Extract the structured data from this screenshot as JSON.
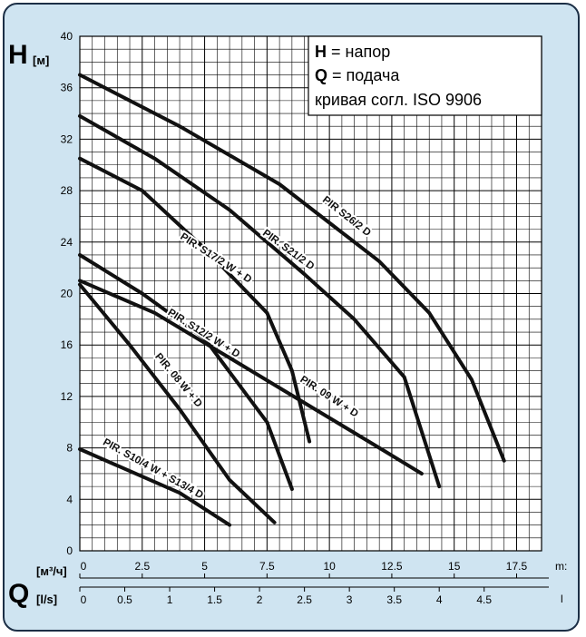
{
  "chart_data": {
    "type": "line",
    "y_axis": {
      "symbol": "H",
      "unit": "[м]",
      "ylim": [
        0,
        40
      ],
      "ticks": [
        0,
        4,
        8,
        12,
        16,
        20,
        24,
        28,
        32,
        36,
        40
      ]
    },
    "x_axis_primary": {
      "symbol": "Q",
      "unit": "[м³/ч]",
      "unit_suffix": "m:",
      "xlim": [
        0,
        18.5
      ],
      "ticks": [
        0,
        2.5,
        5,
        7.5,
        10,
        12.5,
        15,
        17.5
      ],
      "tick_labels": [
        "0",
        "2.5",
        "5",
        "7.5",
        "10",
        "12.5",
        "15",
        "17.5"
      ]
    },
    "x_axis_secondary": {
      "unit": "[l/s]",
      "unit_suffix": "l",
      "ticks": [
        0,
        0.5,
        1,
        1.5,
        2,
        2.5,
        3,
        3.5,
        4,
        4.5
      ],
      "tick_labels": [
        "0",
        "0.5",
        "1",
        "1.5",
        "2",
        "2.5",
        "3",
        "3.5",
        "4",
        "4.5"
      ]
    },
    "legend": {
      "line1_bold": "H",
      "line1_text": " = напор",
      "line2_bold": "Q",
      "line2_text": " = подача",
      "line3": "кривая согл. ISO 9906"
    },
    "grid": true,
    "series": [
      {
        "name": "PIR S26/2 D",
        "x": [
          0,
          4,
          8,
          10,
          12,
          14,
          15.7,
          17
        ],
        "y": [
          37,
          33,
          28.5,
          25.5,
          22.5,
          18.5,
          13.3,
          7
        ]
      },
      {
        "name": "PIR. S21/2 D",
        "x": [
          0,
          3,
          6,
          9,
          11,
          13,
          14.4
        ],
        "y": [
          33.8,
          30.5,
          26.5,
          21.5,
          18,
          13.5,
          5
        ]
      },
      {
        "name": "PIR. S17/2 W + D",
        "x": [
          0,
          2.5,
          5,
          7.5,
          8.5,
          9.2
        ],
        "y": [
          30.5,
          28,
          23.5,
          18.5,
          14,
          8.5
        ]
      },
      {
        "name": "PIR. S12/2 W + D",
        "x": [
          0,
          2.5,
          5,
          7.5,
          8.5
        ],
        "y": [
          23,
          20,
          16.5,
          10,
          4.8
        ]
      },
      {
        "name": "PIR. 09 W + D",
        "x": [
          0,
          3,
          6,
          9,
          12,
          13.7
        ],
        "y": [
          21,
          18.5,
          15,
          11.5,
          8,
          6
        ]
      },
      {
        "name": "PIR. 08 W + D",
        "x": [
          0,
          2,
          4,
          6,
          7.8
        ],
        "y": [
          20.7,
          16,
          11,
          5.5,
          2.2
        ]
      },
      {
        "name": "PIR. S10/4 W + S13/4 D",
        "x": [
          0,
          2,
          4,
          6
        ],
        "y": [
          7.9,
          6.2,
          4.5,
          2
        ]
      }
    ]
  }
}
